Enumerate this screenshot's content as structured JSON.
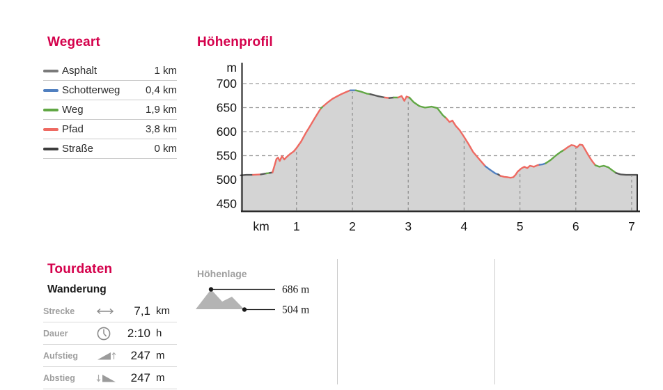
{
  "accent_color": "#d4004b",
  "legend": {
    "title": "Wegeart",
    "items": [
      {
        "label": "Asphalt",
        "value": "1 km",
        "color": "#7a7a7a"
      },
      {
        "label": "Schotterweg",
        "value": "0,4 km",
        "color": "#5180c0"
      },
      {
        "label": "Weg",
        "value": "1,9 km",
        "color": "#61a744"
      },
      {
        "label": "Pfad",
        "value": "3,8 km",
        "color": "#ee6a62"
      },
      {
        "label": "Straße",
        "value": "0 km",
        "color": "#3d3d3d"
      }
    ]
  },
  "chart": {
    "title": "Höhenprofil"
  },
  "chart_data": {
    "type": "area",
    "title": "Höhenprofil",
    "y_unit_label": "m",
    "x_unit_label": "km",
    "y_ticks": [
      700,
      650,
      600,
      550,
      500,
      450
    ],
    "x_ticks": [
      1,
      2,
      3,
      4,
      5,
      6,
      7
    ],
    "x_range_km": [
      0,
      7.1
    ],
    "grid": true,
    "fill_color": "#d4d4d4",
    "surface_colors": {
      "asphalt": "#565656",
      "schotterweg": "#5180c0",
      "weg": "#61a744",
      "pfad": "#ee6a62",
      "strasse": "#3d3d3d"
    },
    "profile": [
      [
        0.0,
        509,
        "asphalt"
      ],
      [
        0.1,
        510,
        "asphalt"
      ],
      [
        0.22,
        510,
        "pfad"
      ],
      [
        0.36,
        511,
        "asphalt"
      ],
      [
        0.46,
        513,
        "weg"
      ],
      [
        0.52,
        514,
        "asphalt"
      ],
      [
        0.57,
        515,
        "pfad"
      ],
      [
        0.6,
        527,
        "pfad"
      ],
      [
        0.64,
        543,
        "pfad"
      ],
      [
        0.67,
        546,
        "pfad"
      ],
      [
        0.7,
        539,
        "pfad"
      ],
      [
        0.74,
        549,
        "pfad"
      ],
      [
        0.78,
        542,
        "pfad"
      ],
      [
        0.82,
        547,
        "pfad"
      ],
      [
        0.88,
        553,
        "pfad"
      ],
      [
        0.95,
        559,
        "pfad"
      ],
      [
        1.0,
        566,
        "pfad"
      ],
      [
        1.08,
        579,
        "pfad"
      ],
      [
        1.16,
        596,
        "pfad"
      ],
      [
        1.24,
        611,
        "pfad"
      ],
      [
        1.32,
        627,
        "pfad"
      ],
      [
        1.4,
        642,
        "pfad"
      ],
      [
        1.44,
        649,
        "weg"
      ],
      [
        1.48,
        653,
        "pfad"
      ],
      [
        1.56,
        661,
        "pfad"
      ],
      [
        1.64,
        668,
        "pfad"
      ],
      [
        1.72,
        673,
        "pfad"
      ],
      [
        1.8,
        678,
        "pfad"
      ],
      [
        1.88,
        682,
        "pfad"
      ],
      [
        1.96,
        686,
        "schotterweg"
      ],
      [
        2.06,
        686,
        "weg"
      ],
      [
        2.16,
        683,
        "weg"
      ],
      [
        2.26,
        679,
        "weg"
      ],
      [
        2.32,
        678,
        "asphalt"
      ],
      [
        2.45,
        674,
        "asphalt"
      ],
      [
        2.58,
        671,
        "pfad"
      ],
      [
        2.66,
        670,
        "asphalt"
      ],
      [
        2.74,
        671,
        "weg"
      ],
      [
        2.82,
        671,
        "pfad"
      ],
      [
        2.88,
        674,
        "pfad"
      ],
      [
        2.93,
        664,
        "pfad"
      ],
      [
        2.97,
        673,
        "pfad"
      ],
      [
        3.02,
        671,
        "weg"
      ],
      [
        3.1,
        661,
        "weg"
      ],
      [
        3.2,
        653,
        "weg"
      ],
      [
        3.3,
        650,
        "weg"
      ],
      [
        3.42,
        652,
        "weg"
      ],
      [
        3.52,
        649,
        "weg"
      ],
      [
        3.62,
        634,
        "weg"
      ],
      [
        3.68,
        628,
        "pfad"
      ],
      [
        3.74,
        620,
        "pfad"
      ],
      [
        3.79,
        623,
        "pfad"
      ],
      [
        3.85,
        612,
        "pfad"
      ],
      [
        3.92,
        603,
        "pfad"
      ],
      [
        4.0,
        589,
        "pfad"
      ],
      [
        4.08,
        574,
        "pfad"
      ],
      [
        4.16,
        558,
        "pfad"
      ],
      [
        4.24,
        547,
        "pfad"
      ],
      [
        4.32,
        536,
        "pfad"
      ],
      [
        4.38,
        528,
        "schotterweg"
      ],
      [
        4.46,
        521,
        "schotterweg"
      ],
      [
        4.56,
        513,
        "schotterweg"
      ],
      [
        4.61,
        511,
        "asphalt"
      ],
      [
        4.65,
        508,
        "pfad"
      ],
      [
        4.72,
        506,
        "pfad"
      ],
      [
        4.78,
        505,
        "pfad"
      ],
      [
        4.83,
        504,
        "pfad"
      ],
      [
        4.88,
        505,
        "pfad"
      ],
      [
        4.92,
        510,
        "pfad"
      ],
      [
        4.96,
        517,
        "pfad"
      ],
      [
        5.02,
        523,
        "pfad"
      ],
      [
        5.08,
        527,
        "pfad"
      ],
      [
        5.13,
        524,
        "pfad"
      ],
      [
        5.18,
        529,
        "pfad"
      ],
      [
        5.25,
        527,
        "pfad"
      ],
      [
        5.31,
        530,
        "pfad"
      ],
      [
        5.35,
        531,
        "schotterweg"
      ],
      [
        5.41,
        532,
        "schotterweg"
      ],
      [
        5.46,
        534,
        "weg"
      ],
      [
        5.55,
        541,
        "weg"
      ],
      [
        5.64,
        550,
        "weg"
      ],
      [
        5.72,
        557,
        "weg"
      ],
      [
        5.79,
        562,
        "pfad"
      ],
      [
        5.86,
        568,
        "pfad"
      ],
      [
        5.92,
        572,
        "pfad"
      ],
      [
        5.97,
        571,
        "pfad"
      ],
      [
        6.02,
        567,
        "pfad"
      ],
      [
        6.07,
        573,
        "pfad"
      ],
      [
        6.12,
        572,
        "pfad"
      ],
      [
        6.17,
        562,
        "pfad"
      ],
      [
        6.23,
        550,
        "pfad"
      ],
      [
        6.29,
        539,
        "pfad"
      ],
      [
        6.35,
        530,
        "weg"
      ],
      [
        6.42,
        527,
        "weg"
      ],
      [
        6.5,
        529,
        "weg"
      ],
      [
        6.58,
        526,
        "weg"
      ],
      [
        6.66,
        519,
        "weg"
      ],
      [
        6.72,
        514,
        "asphalt"
      ],
      [
        6.8,
        511,
        "asphalt"
      ],
      [
        6.9,
        510,
        "asphalt"
      ],
      [
        7.1,
        510,
        "asphalt"
      ]
    ],
    "max_elevation_m": 686,
    "min_elevation_m": 504
  },
  "tourdata": {
    "title": "Tourdaten",
    "subtitle": "Wanderung",
    "rows": [
      {
        "label": "Strecke",
        "icon": "distance-arrow-icon",
        "value": "7,1",
        "unit": "km"
      },
      {
        "label": "Dauer",
        "icon": "clock-icon",
        "value": "2:10",
        "unit": "h"
      },
      {
        "label": "Aufstieg",
        "icon": "ascent-icon",
        "value": "247",
        "unit": "m"
      },
      {
        "label": "Abstieg",
        "icon": "descent-icon",
        "value": "247",
        "unit": "m"
      }
    ]
  },
  "elevation_range": {
    "label": "Höhenlage",
    "max": "686 m",
    "min": "504 m"
  }
}
